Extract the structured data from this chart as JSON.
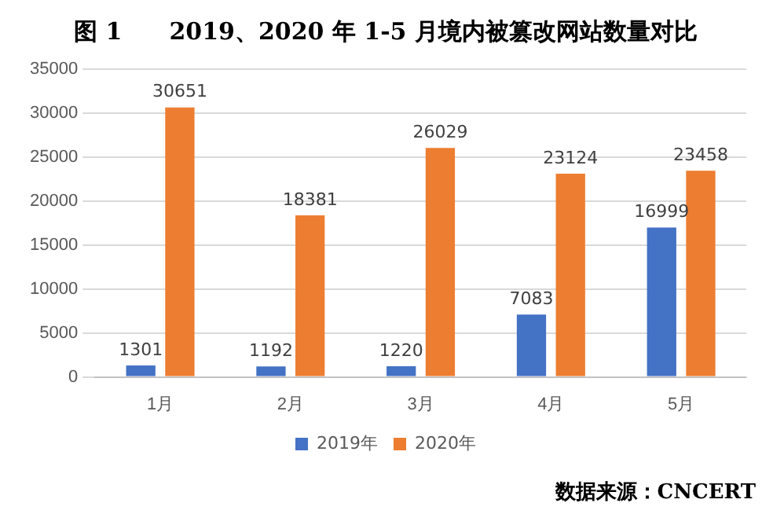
{
  "chart_data": {
    "type": "bar",
    "title": "图 1　　2019、2020 年 1-5 月境内被篡改网站数量对比",
    "categories": [
      "1月",
      "2月",
      "3月",
      "4月",
      "5月"
    ],
    "series": [
      {
        "name": "2019年",
        "color": "#4472c4",
        "values": [
          1301,
          1192,
          1220,
          7083,
          16999
        ]
      },
      {
        "name": "2020年",
        "color": "#ed7d31",
        "values": [
          30651,
          18381,
          26029,
          23124,
          23458
        ]
      }
    ],
    "ylim": [
      0,
      35000
    ],
    "yticks": [
      0,
      5000,
      10000,
      15000,
      20000,
      25000,
      30000,
      35000
    ],
    "grid": "y",
    "legend": "bottom",
    "data_labels": true,
    "annotations": [
      "数据来源：CNCERT"
    ]
  }
}
